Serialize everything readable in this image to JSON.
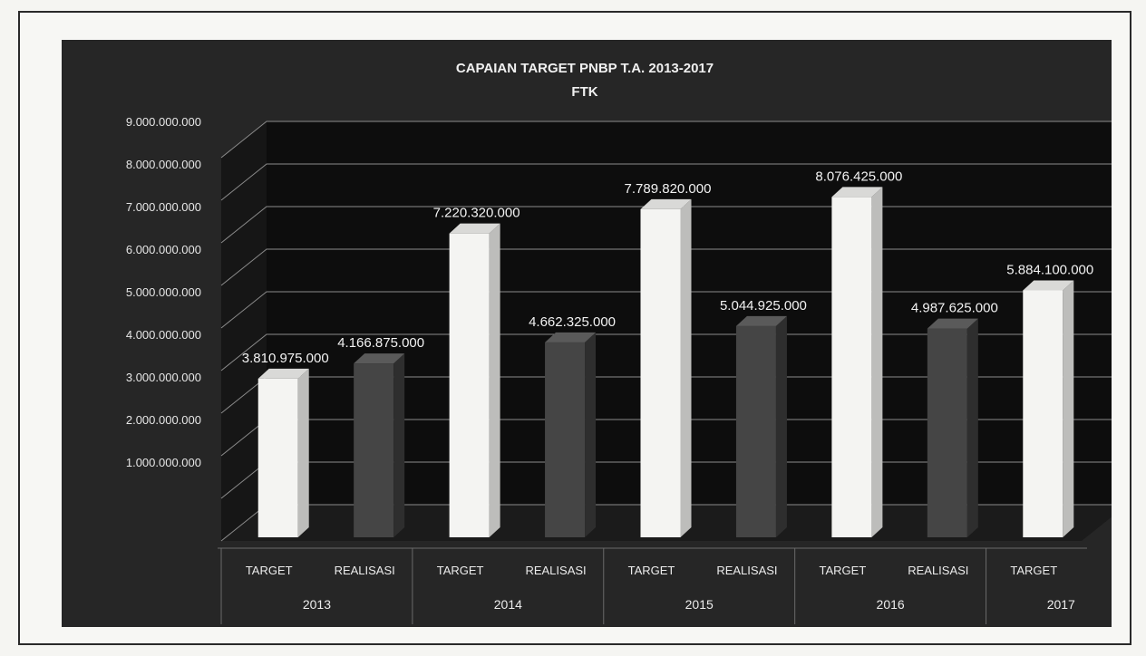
{
  "chart_data": {
    "type": "bar",
    "title": "CAPAIAN TARGET PNBP T.A. 2013-2017",
    "subtitle": "FTK",
    "xlabel": "",
    "ylabel": "",
    "ylim": [
      0,
      9000000000
    ],
    "yticks": [
      "",
      "1.000.000.000",
      "2.000.000.000",
      "3.000.000.000",
      "4.000.000.000",
      "5.000.000.000",
      "6.000.000.000",
      "7.000.000.000",
      "8.000.000.000",
      "9.000.000.000"
    ],
    "grid": true,
    "categories": [
      {
        "label": "TARGET",
        "group": "2013",
        "kind": "target",
        "value": 3810975000,
        "value_label": "3.810.975.000"
      },
      {
        "label": "REALISASI",
        "group": "2013",
        "kind": "realisasi",
        "value": 4166875000,
        "value_label": "4.166.875.000"
      },
      {
        "label": "TARGET",
        "group": "2014",
        "kind": "target",
        "value": 7220320000,
        "value_label": "7.220.320.000"
      },
      {
        "label": "REALISASI",
        "group": "2014",
        "kind": "realisasi",
        "value": 4662325000,
        "value_label": "4.662.325.000"
      },
      {
        "label": "TARGET",
        "group": "2015",
        "kind": "target",
        "value": 7789820000,
        "value_label": "7.789.820.000"
      },
      {
        "label": "REALISASI",
        "group": "2015",
        "kind": "realisasi",
        "value": 5044925000,
        "value_label": "5.044.925.000"
      },
      {
        "label": "TARGET",
        "group": "2016",
        "kind": "target",
        "value": 8076425000,
        "value_label": "8.076.425.000"
      },
      {
        "label": "REALISASI",
        "group": "2016",
        "kind": "realisasi",
        "value": 4987625000,
        "value_label": "4.987.625.000"
      },
      {
        "label": "TARGET",
        "group": "2017",
        "kind": "target",
        "value": 5884100000,
        "value_label": "5.884.100.000"
      }
    ],
    "groups": [
      "2013",
      "2014",
      "2015",
      "2016",
      "2017"
    ],
    "colors": {
      "target": "#f4f4f2",
      "realisasi": "#454545",
      "background": "#262626",
      "gridline": "#8a8a8a"
    }
  }
}
